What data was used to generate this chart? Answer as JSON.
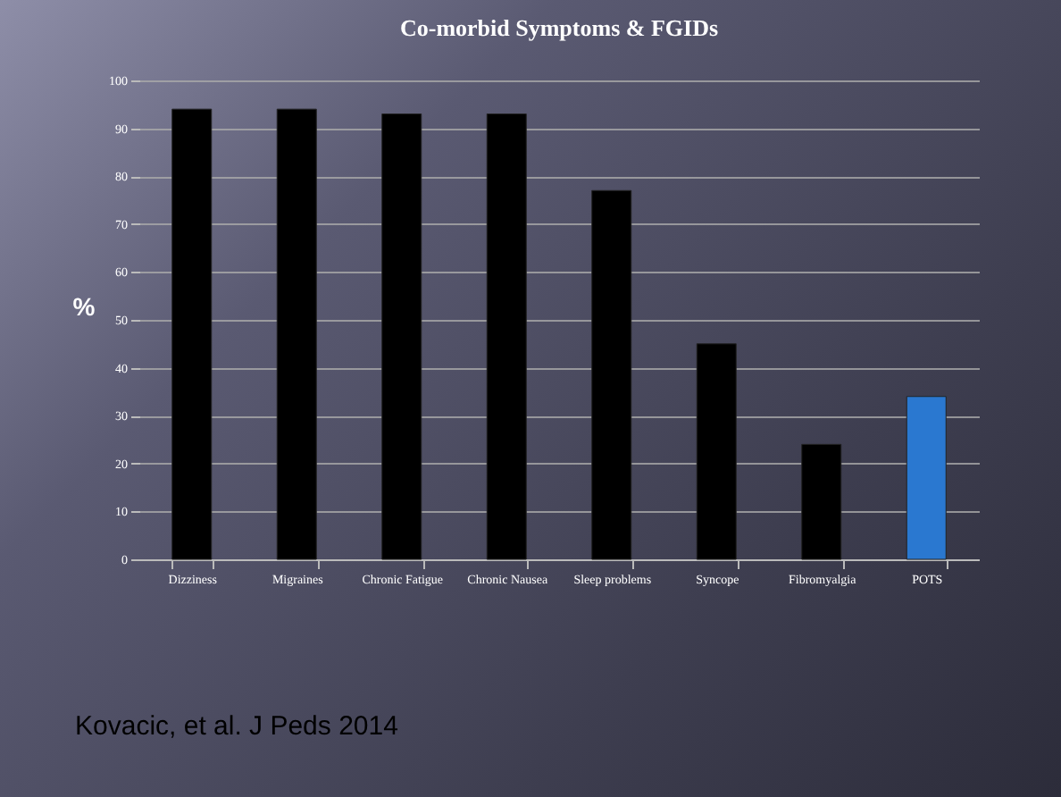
{
  "chart_data": {
    "type": "bar",
    "title": "Co-morbid Symptoms & FGIDs",
    "ylabel": "%",
    "categories": [
      "Dizziness",
      "Migraines",
      "Chronic Fatigue",
      "Chronic Nausea",
      "Sleep problems",
      "Syncope",
      "Fibromyalgia",
      "POTS"
    ],
    "values": [
      94,
      94,
      93,
      93,
      77,
      45,
      24,
      34
    ],
    "colors": [
      "#000000",
      "#000000",
      "#000000",
      "#000000",
      "#000000",
      "#000000",
      "#000000",
      "#2a78d0"
    ],
    "ylim": [
      0,
      100
    ],
    "yticks": [
      0,
      10,
      20,
      30,
      40,
      50,
      60,
      70,
      80,
      90,
      100
    ],
    "grid": "y",
    "annotations": [
      "Kovacic, et al. J Peds 2014"
    ]
  }
}
